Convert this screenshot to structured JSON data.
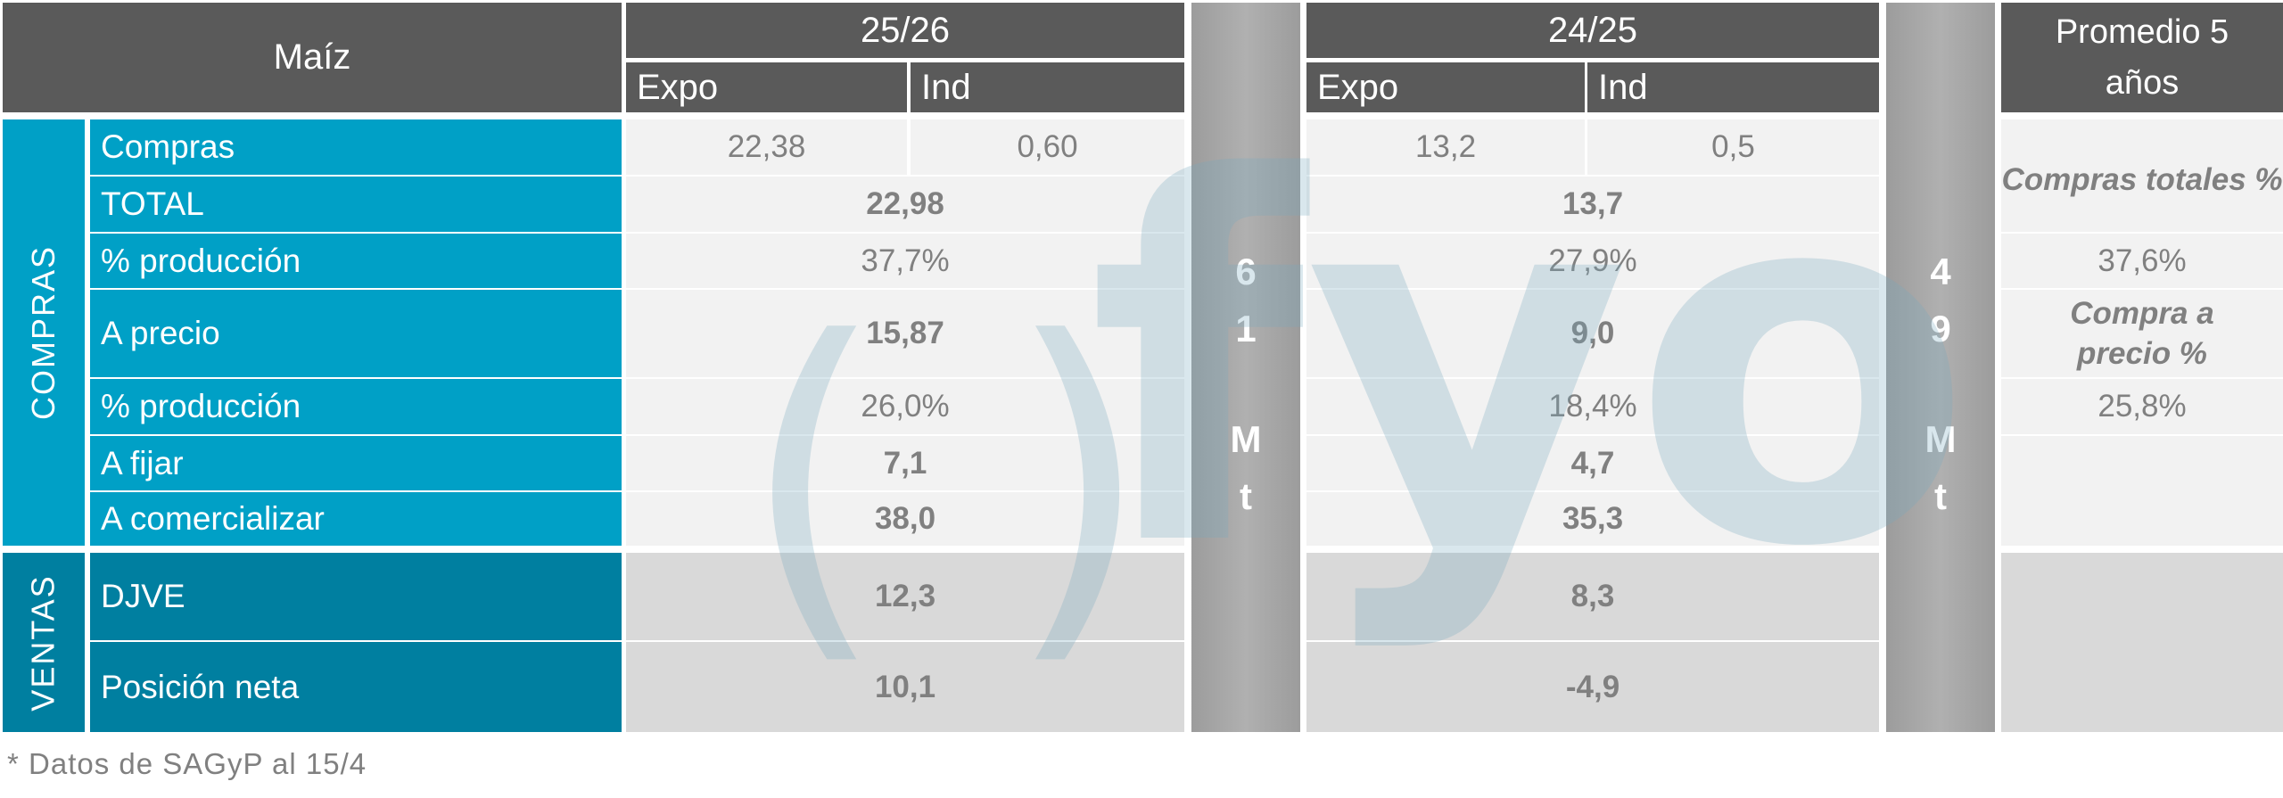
{
  "header": {
    "product": "Maíz",
    "season1": "25/26",
    "season2": "24/25",
    "expo": "Expo",
    "ind": "Ind",
    "average": "Promedio 5 años"
  },
  "sections": {
    "compras": "COMPRAS",
    "ventas": "VENTAS"
  },
  "rows": [
    {
      "label": "Compras",
      "s1_expo": "22,38",
      "s1_ind": "0,60",
      "s2_expo": "13,2",
      "s2_ind": "0,5"
    },
    {
      "label": "TOTAL",
      "s1": "22,98",
      "s2": "13,7"
    },
    {
      "label": "% producción",
      "s1": "37,7%",
      "s2": "27,9%"
    },
    {
      "label": "A precio",
      "s1": "15,87",
      "s2": "9,0"
    },
    {
      "label": "% producción",
      "s1": "26,0%",
      "s2": "18,4%"
    },
    {
      "label": "A fijar",
      "s1": "7,1",
      "s2": "4,7"
    },
    {
      "label": "A comercializar",
      "s1": "38,0",
      "s2": "35,3"
    },
    {
      "label": "DJVE",
      "s1": "12,3",
      "s2": "8,3"
    },
    {
      "label": "Posición neta",
      "s1": "10,1",
      "s2": "-4,9"
    }
  ],
  "average": {
    "label1": "Compras totales %",
    "value1": "37,6%",
    "label2": "Compra a precio %",
    "value2": "25,8%"
  },
  "production": {
    "s1": [
      "6",
      "1",
      "M",
      "t"
    ],
    "s2": [
      "4",
      "9",
      "M",
      "t"
    ]
  },
  "watermark": "fyo",
  "footnote": "* Datos de SAGyP al 15/4",
  "colors": {
    "header": "#5a5a5a",
    "compras": "#00a0c6",
    "ventas": "#007fa0",
    "cell": "#f2f2f2",
    "ventas_cell": "#d9d9d9",
    "production": "#a6a6a6",
    "text": "#808080"
  }
}
